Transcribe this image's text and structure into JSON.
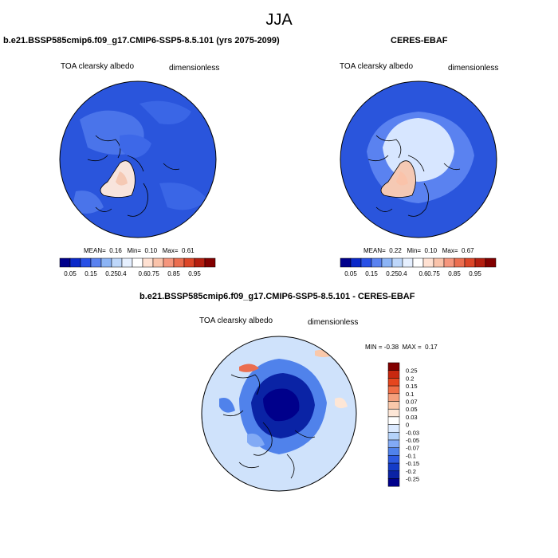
{
  "season": "JJA",
  "panels": [
    {
      "title": "b.e21.BSSP585cmip6.f09_g17.CMIP6-SSP5-8.5.101 (yrs 2075-2099)",
      "variable": "TOA clearsky albedo",
      "units": "dimensionless",
      "stats": {
        "mean_label": "MEAN=",
        "mean": "0.16",
        "min_label": "Min=",
        "min": "0.10",
        "max_label": "Max=",
        "max": "0.61"
      }
    },
    {
      "title": "CERES-EBAF",
      "variable": "TOA clearsky albedo",
      "units": "dimensionless",
      "stats": {
        "mean_label": "MEAN=",
        "mean": "0.22",
        "min_label": "Min=",
        "min": "0.10",
        "max_label": "Max=",
        "max": "0.67"
      }
    },
    {
      "title": "b.e21.BSSP585cmip6.f09_g17.CMIP6-SSP5-8.5.101 - CERES-EBAF",
      "variable": "TOA clearsky albedo",
      "units": "dimensionless",
      "stats": {
        "min_label": "MIN =",
        "min": "-0.38",
        "max_label": "MAX =",
        "max": "0.17"
      }
    }
  ],
  "colorbar_abs": {
    "ticks": [
      "0.05",
      "0.15",
      "0.25",
      "0.4",
      "0.6",
      "0.75",
      "0.85",
      "0.95"
    ],
    "colors": [
      "#00008b",
      "#0a28c8",
      "#2850e6",
      "#5a82f0",
      "#8cb4f5",
      "#bed7fa",
      "#e6f0ff",
      "#ffffff",
      "#ffe1d2",
      "#fac3aa",
      "#f5967d",
      "#eb6e50",
      "#dc4628",
      "#b41e0f",
      "#820000"
    ]
  },
  "colorbar_diff": {
    "labels": [
      "0.25",
      "0.2",
      "0.15",
      "0.1",
      "0.07",
      "0.05",
      "0.03",
      "0",
      "-0.03",
      "-0.05",
      "-0.07",
      "-0.1",
      "-0.15",
      "-0.2",
      "-0.25"
    ],
    "colors": [
      "#820000",
      "#c8280f",
      "#e6461e",
      "#f06e46",
      "#f5a07d",
      "#fac8aa",
      "#fde6d6",
      "#ffffff",
      "#dceaff",
      "#b4d2fa",
      "#82aaf5",
      "#5082eb",
      "#2d5ae1",
      "#143cc8",
      "#0a23a5",
      "#00008b"
    ]
  },
  "map_colors": {
    "ocean_model": "#2a55dc",
    "ocean_light": "#5a82f0",
    "greenland_model": "#f8e4dc",
    "greenland_ceres": "#f5c9b4",
    "arctic_ceres": "#d7e6ff",
    "diff_base": "#cfe2fb",
    "diff_arctic": "#0a23a5",
    "diff_mid": "#5082eb"
  }
}
